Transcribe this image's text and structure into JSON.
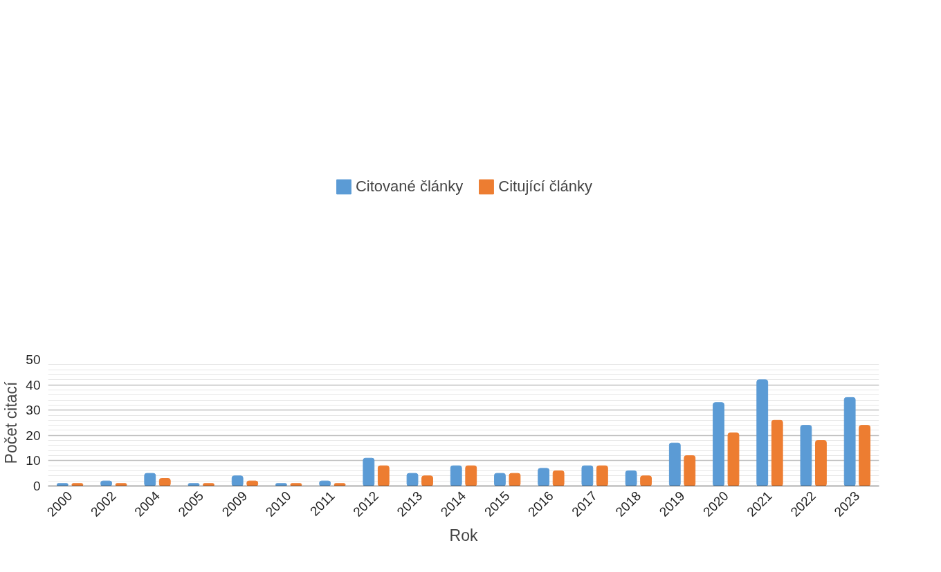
{
  "chart_data": {
    "type": "bar",
    "xlabel": "Rok",
    "ylabel": "Počet citací",
    "categories": [
      "2000",
      "2002",
      "2004",
      "2005",
      "2009",
      "2010",
      "2011",
      "2012",
      "2013",
      "2014",
      "2015",
      "2016",
      "2017",
      "2018",
      "2019",
      "2020",
      "2021",
      "2022",
      "2023"
    ],
    "series": [
      {
        "name": "Citované články",
        "color": "#5b9bd5",
        "values": [
          1,
          2,
          5,
          1,
          4,
          1,
          2,
          11,
          5,
          8,
          5,
          7,
          8,
          6,
          17,
          33,
          42,
          24,
          35
        ]
      },
      {
        "name": "Citující články",
        "color": "#ed7d31",
        "values": [
          1,
          1,
          3,
          1,
          2,
          1,
          1,
          8,
          4,
          8,
          5,
          6,
          8,
          4,
          12,
          21,
          26,
          18,
          24
        ]
      }
    ],
    "ylim": [
      0,
      50
    ],
    "yticks": [
      0,
      10,
      20,
      30,
      40,
      50
    ],
    "grid": "y",
    "legend": "top"
  }
}
